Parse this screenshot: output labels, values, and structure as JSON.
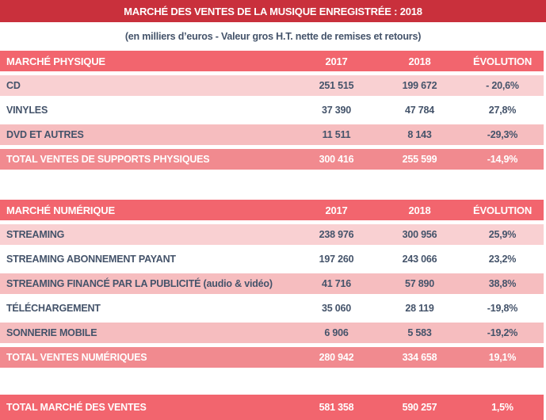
{
  "title": "MARCHÉ DES VENTES DE LA MUSIQUE ENREGISTRÉE : 2018",
  "subtitle": "(en milliers d’euros - Valeur gros H.T. nette de remises et retours)",
  "colors": {
    "banner_red": "#C9303C",
    "header_salmon": "#F2656E",
    "subtotal_salmon": "#F18A8F",
    "pink_light": "#F9D0D2",
    "pink_medium": "#F6BDBF",
    "text_dark": "#44536A",
    "text_light": "#FFFFFF"
  },
  "tables": [
    {
      "header": {
        "label": "MARCHÉ PHYSIQUE",
        "col2017": "2017",
        "col2018": "2018",
        "evolution": "ÉVOLUTION"
      },
      "rows": [
        {
          "label": "CD",
          "v2017": "251 515",
          "v2018": "199 672",
          "evolution": "- 20,6%"
        },
        {
          "label": "VINYLES",
          "v2017": "37 390",
          "v2018": "47 784",
          "evolution": "27,8%"
        },
        {
          "label": "DVD ET AUTRES",
          "v2017": "11 511",
          "v2018": "8 143",
          "evolution": "-29,3%"
        },
        {
          "label": "TOTAL VENTES DE SUPPORTS PHYSIQUES",
          "v2017": "300 416",
          "v2018": "255 599",
          "evolution": "-14,9%"
        }
      ]
    },
    {
      "header": {
        "label": "MARCHÉ NUMÉRIQUE",
        "col2017": "2017",
        "col2018": "2018",
        "evolution": "ÉVOLUTION"
      },
      "rows": [
        {
          "label": "STREAMING",
          "v2017": "238 976",
          "v2018": "300 956",
          "evolution": "25,9%"
        },
        {
          "label": "STREAMING ABONNEMENT PAYANT",
          "v2017": "197 260",
          "v2018": "243 066",
          "evolution": "23,2%"
        },
        {
          "label": "STREAMING FINANCÉ PAR LA PUBLICITÉ (audio & vidéo)",
          "v2017": "41 716",
          "v2018": "57 890",
          "evolution": "38,8%"
        },
        {
          "label": "TÉLÉCHARGEMENT",
          "v2017": "35 060",
          "v2018": "28 119",
          "evolution": "-19,8%"
        },
        {
          "label": "SONNERIE MOBILE",
          "v2017": "6 906",
          "v2018": "5 583",
          "evolution": "-19,2%"
        },
        {
          "label": "TOTAL VENTES NUMÉRIQUES",
          "v2017": "280 942",
          "v2018": "334 658",
          "evolution": "19,1%"
        }
      ]
    }
  ],
  "grand_total": {
    "label": "TOTAL MARCHÉ DES VENTES",
    "v2017": "581 358",
    "v2018": "590 257",
    "evolution": "1,5%"
  },
  "chart_data": {
    "type": "table",
    "title": "MARCHÉ DES VENTES DE LA MUSIQUE ENREGISTRÉE : 2018",
    "unit": "milliers d'euros - Valeur gros H.T. nette de remises et retours",
    "columns": [
      "2017",
      "2018",
      "ÉVOLUTION"
    ],
    "sections": [
      {
        "name": "MARCHÉ PHYSIQUE",
        "rows": [
          {
            "label": "CD",
            "y2017": 251515,
            "y2018": 199672,
            "evolution_pct": -20.6
          },
          {
            "label": "VINYLES",
            "y2017": 37390,
            "y2018": 47784,
            "evolution_pct": 27.8
          },
          {
            "label": "DVD ET AUTRES",
            "y2017": 11511,
            "y2018": 8143,
            "evolution_pct": -29.3
          },
          {
            "label": "TOTAL VENTES DE SUPPORTS PHYSIQUES",
            "y2017": 300416,
            "y2018": 255599,
            "evolution_pct": -14.9
          }
        ]
      },
      {
        "name": "MARCHÉ NUMÉRIQUE",
        "rows": [
          {
            "label": "STREAMING",
            "y2017": 238976,
            "y2018": 300956,
            "evolution_pct": 25.9
          },
          {
            "label": "STREAMING ABONNEMENT PAYANT",
            "y2017": 197260,
            "y2018": 243066,
            "evolution_pct": 23.2
          },
          {
            "label": "STREAMING FINANCÉ PAR LA PUBLICITÉ (audio & vidéo)",
            "y2017": 41716,
            "y2018": 57890,
            "evolution_pct": 38.8
          },
          {
            "label": "TÉLÉCHARGEMENT",
            "y2017": 35060,
            "y2018": 28119,
            "evolution_pct": -19.8
          },
          {
            "label": "SONNERIE MOBILE",
            "y2017": 6906,
            "y2018": 5583,
            "evolution_pct": -19.2
          },
          {
            "label": "TOTAL VENTES NUMÉRIQUES",
            "y2017": 280942,
            "y2018": 334658,
            "evolution_pct": 19.1
          }
        ]
      },
      {
        "name": "TOTAL",
        "rows": [
          {
            "label": "TOTAL MARCHÉ DES VENTES",
            "y2017": 581358,
            "y2018": 590257,
            "evolution_pct": 1.5
          }
        ]
      }
    ]
  }
}
